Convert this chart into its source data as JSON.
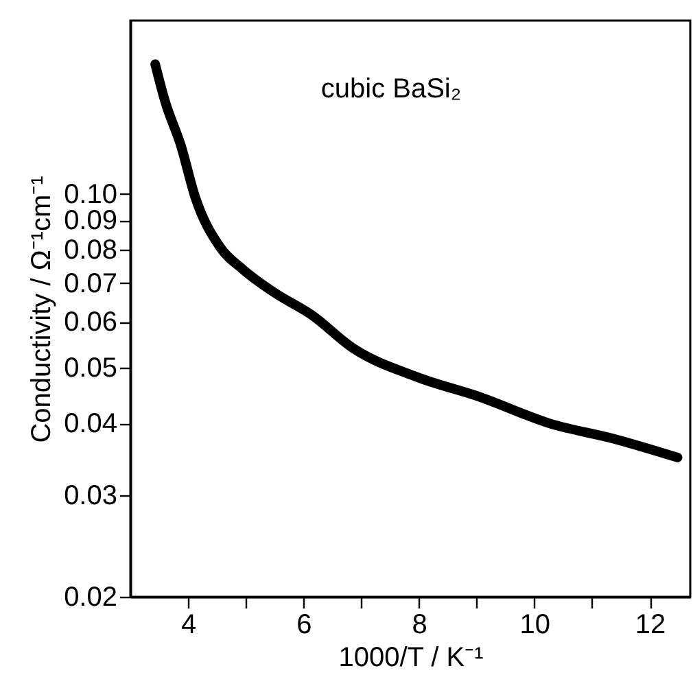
{
  "chart_data": {
    "type": "line",
    "xlabel": "1000/T / K⁻¹",
    "ylabel": "Conductivity / Ω⁻¹cm⁻¹",
    "annotations": [
      "cubic BaSi₂"
    ],
    "x": [
      3.43,
      3.6,
      3.88,
      4.12,
      4.55,
      4.95,
      5.5,
      6.14,
      6.86,
      7.95,
      9.07,
      10.26,
      11.38,
      12.48
    ],
    "series": [
      {
        "color": "#000000",
        "values": [
          0.168,
          0.145,
          0.121,
          0.099,
          0.081,
          0.074,
          0.0674,
          0.0617,
          0.054,
          0.0482,
          0.0444,
          0.04,
          0.0376,
          0.0349
        ]
      }
    ],
    "log": "y",
    "xlim": [
      3,
      12.7
    ],
    "ylim": [
      0.02,
      0.2
    ],
    "xticks": [
      4,
      {
        "value": 5,
        "label": null
      },
      6,
      {
        "value": 7,
        "label": null
      },
      8,
      {
        "value": 9,
        "label": null
      },
      10,
      {
        "value": 11,
        "label": null
      },
      12
    ],
    "yticks": [
      0.02,
      0.03,
      0.04,
      0.05,
      0.06,
      0.07,
      0.08,
      0.09,
      {
        "value": 0.1,
        "label": "0.10"
      }
    ],
    "grid": false,
    "line_style": "solid"
  }
}
